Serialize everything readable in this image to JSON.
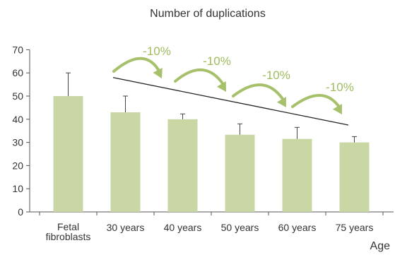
{
  "chart_data": {
    "type": "bar",
    "title": "Number of duplications",
    "xlabel": "Age",
    "ylabel": "",
    "ylim": [
      0,
      70
    ],
    "yticks": [
      0,
      10,
      20,
      30,
      40,
      50,
      60,
      70
    ],
    "categories": [
      [
        "Fetal",
        "fibroblasts"
      ],
      [
        "30 years"
      ],
      [
        "40 years"
      ],
      [
        "50 years"
      ],
      [
        "60 years"
      ],
      [
        "75 years"
      ]
    ],
    "values": [
      50,
      43,
      40,
      33.3,
      31.5,
      30
    ],
    "error_upper": [
      60,
      50,
      42.3,
      38,
      36.5,
      32.5
    ],
    "grid": false,
    "trend_line": {
      "from_y": 58,
      "to_y": 37.5
    },
    "annotations": [
      "-10%",
      "-10%",
      "-10%",
      "-10%"
    ],
    "colors": {
      "bar": "#c8d7a4",
      "arrow": "#a7c06b",
      "annotation_text": "#9fbc60",
      "axis": "#555555",
      "trend": "#222222",
      "error_bar": "#444444"
    }
  }
}
